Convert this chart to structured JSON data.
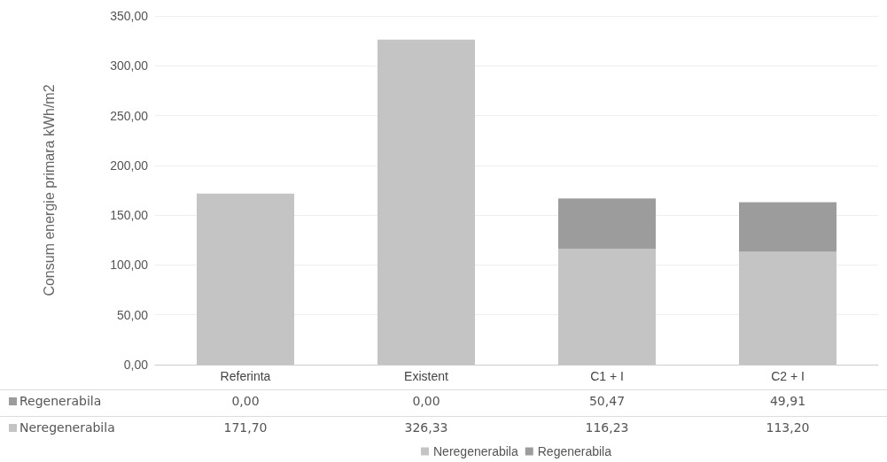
{
  "chart_data": {
    "type": "bar",
    "stacked": true,
    "ylabel": "Consum energie primara kWh/m2",
    "categories": [
      "Referinta",
      "Existent",
      "C1 + I",
      "C2 + I"
    ],
    "series": [
      {
        "name": "Neregenerabila",
        "color": "#c4c4c4",
        "values": [
          171.7,
          326.33,
          116.23,
          113.2
        ],
        "value_labels": [
          "171,70",
          "326,33",
          "116,23",
          "113,20"
        ]
      },
      {
        "name": "Regenerabila",
        "color": "#9c9c9c",
        "values": [
          0.0,
          0.0,
          50.47,
          49.91
        ],
        "value_labels": [
          "0,00",
          "0,00",
          "50,47",
          "49,91"
        ]
      }
    ],
    "ylim": [
      0,
      350
    ],
    "yticks": [
      {
        "value": 0,
        "label": "0,00"
      },
      {
        "value": 50,
        "label": "50,00"
      },
      {
        "value": 100,
        "label": "100,00"
      },
      {
        "value": 150,
        "label": "150,00"
      },
      {
        "value": 200,
        "label": "200,00"
      },
      {
        "value": 250,
        "label": "250,00"
      },
      {
        "value": 300,
        "label": "300,00"
      },
      {
        "value": 350,
        "label": "350,00"
      }
    ],
    "grid": "y",
    "legend": "bottom"
  }
}
